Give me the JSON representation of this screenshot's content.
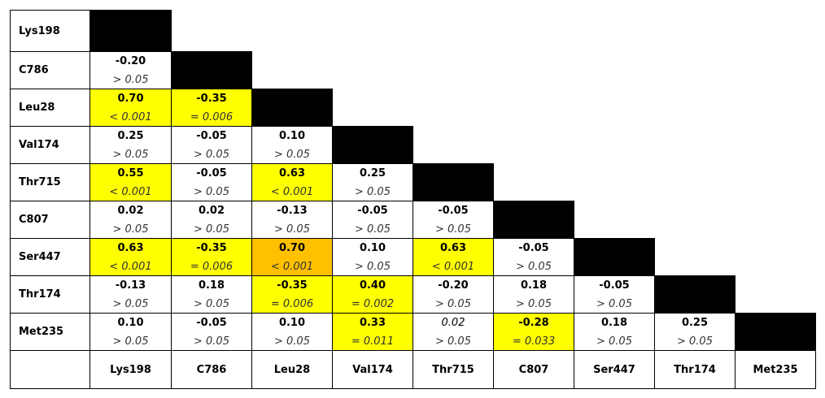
{
  "table": {
    "columns": [
      "Lys198",
      "C786",
      "Leu28",
      "Val174",
      "Thr715",
      "C807",
      "Ser447",
      "Thr174",
      "Met235"
    ],
    "rows": [
      {
        "label": "Lys198",
        "cells": []
      },
      {
        "label": "C786",
        "cells": [
          {
            "r": "-0.20",
            "p": "> 0.05"
          }
        ]
      },
      {
        "label": "Leu28",
        "cells": [
          {
            "r": "0.70",
            "p": "< 0.001",
            "color": "#ffff00"
          },
          {
            "r": "-0.35",
            "p": "= 0.006",
            "color": "#ffff00"
          }
        ]
      },
      {
        "label": "Val174",
        "cells": [
          {
            "r": "0.25",
            "p": "> 0.05"
          },
          {
            "r": "-0.05",
            "p": "> 0.05"
          },
          {
            "r": "0.10",
            "p": "> 0.05"
          }
        ]
      },
      {
        "label": "Thr715",
        "cells": [
          {
            "r": "0.55",
            "p": "< 0.001",
            "color": "#ffff00"
          },
          {
            "r": "-0.05",
            "p": "> 0.05"
          },
          {
            "r": "0.63",
            "p": "< 0.001",
            "color": "#ffff00"
          },
          {
            "r": "0.25",
            "p": "> 0.05"
          }
        ]
      },
      {
        "label": "C807",
        "cells": [
          {
            "r": "0.02",
            "p": "> 0.05"
          },
          {
            "r": "0.02",
            "p": "> 0.05"
          },
          {
            "r": "-0.13",
            "p": "> 0.05"
          },
          {
            "r": "-0.05",
            "p": "> 0.05"
          },
          {
            "r": "-0.05",
            "p": "> 0.05"
          }
        ]
      },
      {
        "label": "Ser447",
        "cells": [
          {
            "r": "0.63",
            "p": "< 0.001",
            "color": "#ffff00"
          },
          {
            "r": "-0.35",
            "p": "= 0.006",
            "color": "#ffff00"
          },
          {
            "r": "0.70",
            "p": "< 0.001",
            "color": "#ffc000"
          },
          {
            "r": "0.10",
            "p": "> 0.05"
          },
          {
            "r": "0.63",
            "p": "< 0.001",
            "color": "#ffff00"
          },
          {
            "r": "-0.05",
            "p": "> 0.05"
          }
        ]
      },
      {
        "label": "Thr174",
        "cells": [
          {
            "r": "-0.13",
            "p": "> 0.05"
          },
          {
            "r": "0.18",
            "p": "> 0.05"
          },
          {
            "r": "-0.35",
            "p": "= 0.006",
            "color": "#ffff00"
          },
          {
            "r": "0.40",
            "p": "= 0.002",
            "color": "#ffff00"
          },
          {
            "r": "-0.20",
            "p": "> 0.05"
          },
          {
            "r": "0.18",
            "p": "> 0.05"
          },
          {
            "r": "-0.05",
            "p": "> 0.05"
          }
        ]
      },
      {
        "label": "Met235",
        "cells": [
          {
            "r": "0.10",
            "p": "> 0.05"
          },
          {
            "r": "-0.05",
            "p": "> 0.05"
          },
          {
            "r": "0.10",
            "p": "> 0.05"
          },
          {
            "r": "0.33",
            "p": "= 0.011",
            "color": "#ffff00"
          },
          {
            "r": "0.02",
            "p": "> 0.05",
            "italic": true
          },
          {
            "r": "-0.28",
            "p": "= 0.033",
            "color": "#ffff00"
          },
          {
            "r": "0.18",
            "p": "> 0.05"
          },
          {
            "r": "0.25",
            "p": "> 0.05"
          }
        ]
      }
    ]
  }
}
